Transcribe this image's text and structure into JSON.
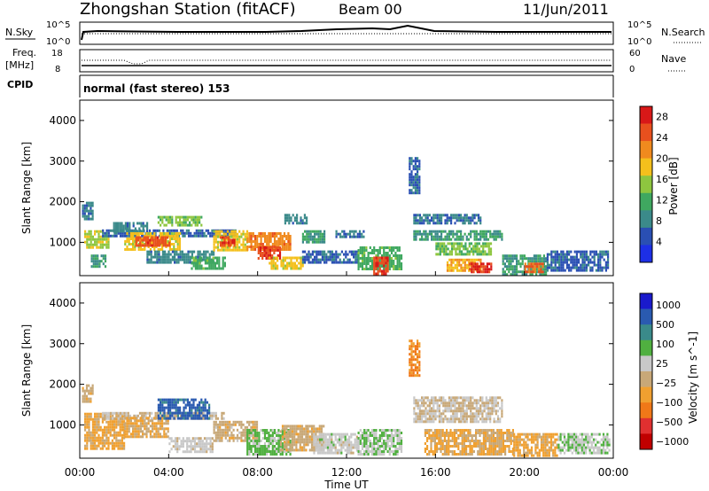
{
  "header": {
    "station": "Zhongshan Station (fitACF)",
    "beam": "Beam 00",
    "date": "11/Jun/2011"
  },
  "panels": {
    "nsky_label": "N.Sky",
    "nsky_ticks": [
      "10^5",
      "10^0"
    ],
    "nsearch_label": "N.Search",
    "nsearch_ticks": [
      "10^5",
      "10^0"
    ],
    "freq_label_1": "Freq.",
    "freq_label_2": "[MHz]",
    "freq_ticks": [
      "18",
      "8"
    ],
    "nave_label": "Nave",
    "nave_ticks": [
      "60",
      "0"
    ],
    "cpid_label": "CPID",
    "cpid_text": "normal (fast stereo) 153"
  },
  "colors": {
    "power": [
      "#1d2fe6",
      "#2a4fb3",
      "#3b8a8a",
      "#3fa860",
      "#8ec63f",
      "#f4c01c",
      "#f08a1e",
      "#e8501e",
      "#d81818"
    ],
    "velocity": [
      "#1a1acc",
      "#2a5ab0",
      "#3a8a8a",
      "#50b040",
      "#c8c8c8",
      "#c8a878",
      "#f0a030",
      "#f07818",
      "#e03030",
      "#c00000"
    ]
  },
  "chart_data": [
    {
      "type": "heatmap",
      "title": "",
      "xlabel": "Time UT",
      "ylabel": "Slant Range [km]",
      "x_ticks": [
        "00:00",
        "04:00",
        "08:00",
        "12:00",
        "16:00",
        "20:00",
        "00:00"
      ],
      "y_ticks": [
        1000,
        2000,
        3000,
        4000
      ],
      "xlim": [
        0,
        24
      ],
      "ylim": [
        180,
        4500
      ],
      "colorbar": {
        "label": "Power [dB]",
        "ticks": [
          "4",
          "8",
          "12",
          "16",
          "20",
          "24",
          "28"
        ],
        "range": [
          0,
          30
        ]
      },
      "regions": [
        {
          "t0": 0.1,
          "t1": 0.6,
          "r0": 1600,
          "r1": 2000,
          "v": 8
        },
        {
          "t0": 0.2,
          "t1": 1.3,
          "r0": 900,
          "r1": 1300,
          "v": 16
        },
        {
          "t0": 0.5,
          "t1": 1.2,
          "r0": 400,
          "r1": 700,
          "v": 10
        },
        {
          "t0": 1.0,
          "t1": 7.0,
          "r0": 1180,
          "r1": 1320,
          "v": 6
        },
        {
          "t0": 1.5,
          "t1": 3.0,
          "r0": 1300,
          "r1": 1500,
          "v": 8
        },
        {
          "t0": 2.0,
          "t1": 4.5,
          "r0": 800,
          "r1": 1250,
          "v": 18
        },
        {
          "t0": 2.5,
          "t1": 4.0,
          "r0": 900,
          "r1": 1150,
          "v": 25
        },
        {
          "t0": 3.5,
          "t1": 5.5,
          "r0": 1400,
          "r1": 1650,
          "v": 14
        },
        {
          "t0": 3.0,
          "t1": 6.0,
          "r0": 500,
          "r1": 800,
          "v": 8
        },
        {
          "t0": 5.0,
          "t1": 6.5,
          "r0": 350,
          "r1": 650,
          "v": 12
        },
        {
          "t0": 6.0,
          "t1": 7.5,
          "r0": 800,
          "r1": 1300,
          "v": 18
        },
        {
          "t0": 6.3,
          "t1": 7.0,
          "r0": 900,
          "r1": 1150,
          "v": 26
        },
        {
          "t0": 7.5,
          "t1": 9.5,
          "r0": 850,
          "r1": 1250,
          "v": 22
        },
        {
          "t0": 8.0,
          "t1": 9.0,
          "r0": 600,
          "r1": 900,
          "v": 26
        },
        {
          "t0": 8.5,
          "t1": 10.0,
          "r0": 350,
          "r1": 650,
          "v": 18
        },
        {
          "t0": 9.2,
          "t1": 10.2,
          "r0": 1500,
          "r1": 1700,
          "v": 8
        },
        {
          "t0": 10.0,
          "t1": 11.0,
          "r0": 1000,
          "r1": 1300,
          "v": 10
        },
        {
          "t0": 10.0,
          "t1": 12.5,
          "r0": 500,
          "r1": 800,
          "v": 6
        },
        {
          "t0": 11.5,
          "t1": 12.8,
          "r0": 1150,
          "r1": 1300,
          "v": 7
        },
        {
          "t0": 12.5,
          "t1": 14.5,
          "r0": 350,
          "r1": 900,
          "v": 12
        },
        {
          "t0": 13.2,
          "t1": 13.9,
          "r0": 250,
          "r1": 650,
          "v": 26
        },
        {
          "t0": 14.8,
          "t1": 15.3,
          "r0": 2200,
          "r1": 3100,
          "v": 6
        },
        {
          "t0": 15.0,
          "t1": 18.0,
          "r0": 1500,
          "r1": 1700,
          "v": 7
        },
        {
          "t0": 15.0,
          "t1": 19.0,
          "r0": 1100,
          "r1": 1300,
          "v": 10
        },
        {
          "t0": 16.0,
          "t1": 18.5,
          "r0": 700,
          "r1": 1000,
          "v": 14
        },
        {
          "t0": 16.5,
          "t1": 18.0,
          "r0": 300,
          "r1": 600,
          "v": 20
        },
        {
          "t0": 17.5,
          "t1": 18.5,
          "r0": 300,
          "r1": 500,
          "v": 27
        },
        {
          "t0": 19.0,
          "t1": 21.0,
          "r0": 200,
          "r1": 700,
          "v": 10
        },
        {
          "t0": 20.0,
          "t1": 20.8,
          "r0": 250,
          "r1": 500,
          "v": 24
        },
        {
          "t0": 21.0,
          "t1": 23.8,
          "r0": 300,
          "r1": 800,
          "v": 6
        }
      ]
    },
    {
      "type": "heatmap",
      "title": "",
      "xlabel": "Time UT",
      "ylabel": "Slant Range [km]",
      "x_ticks": [
        "00:00",
        "04:00",
        "08:00",
        "12:00",
        "16:00",
        "20:00",
        "00:00"
      ],
      "y_ticks": [
        1000,
        2000,
        3000,
        4000
      ],
      "xlim": [
        0,
        24
      ],
      "ylim": [
        180,
        4500
      ],
      "colorbar": {
        "label": "Velocity [m s^-1]",
        "ticks": [
          "1000",
          "500",
          "100",
          "25",
          "−25",
          "−100",
          "−500",
          "−1000"
        ],
        "range": [
          -1200,
          1200
        ]
      },
      "regions": [
        {
          "t0": 0.1,
          "t1": 0.6,
          "r0": 1600,
          "r1": 2000,
          "v": -150
        },
        {
          "t0": 0.2,
          "t1": 2.0,
          "r0": 400,
          "r1": 1300,
          "v": -300
        },
        {
          "t0": 1.0,
          "t1": 6.5,
          "r0": 1180,
          "r1": 1320,
          "v": 0
        },
        {
          "t0": 2.0,
          "t1": 4.0,
          "r0": 700,
          "r1": 1200,
          "v": -250
        },
        {
          "t0": 3.5,
          "t1": 5.8,
          "r0": 1150,
          "r1": 1650,
          "v": 800
        },
        {
          "t0": 4.0,
          "t1": 6.0,
          "r0": 350,
          "r1": 700,
          "v": 80
        },
        {
          "t0": 6.0,
          "t1": 8.0,
          "r0": 600,
          "r1": 1100,
          "v": -120
        },
        {
          "t0": 7.5,
          "t1": 9.5,
          "r0": 300,
          "r1": 900,
          "v": 300
        },
        {
          "t0": 9.0,
          "t1": 11.0,
          "r0": 400,
          "r1": 1000,
          "v": -150
        },
        {
          "t0": 10.5,
          "t1": 12.5,
          "r0": 300,
          "r1": 800,
          "v": 120
        },
        {
          "t0": 12.5,
          "t1": 14.5,
          "r0": 300,
          "r1": 900,
          "v": 200
        },
        {
          "t0": 14.8,
          "t1": 15.3,
          "r0": 2200,
          "r1": 3100,
          "v": -500
        },
        {
          "t0": 15.0,
          "t1": 19.0,
          "r0": 1100,
          "r1": 1700,
          "v": 0
        },
        {
          "t0": 15.5,
          "t1": 19.5,
          "r0": 300,
          "r1": 900,
          "v": -250
        },
        {
          "t0": 19.5,
          "t1": 21.5,
          "r0": 250,
          "r1": 800,
          "v": -300
        },
        {
          "t0": 21.5,
          "t1": 23.8,
          "r0": 300,
          "r1": 800,
          "v": 200
        }
      ]
    }
  ]
}
